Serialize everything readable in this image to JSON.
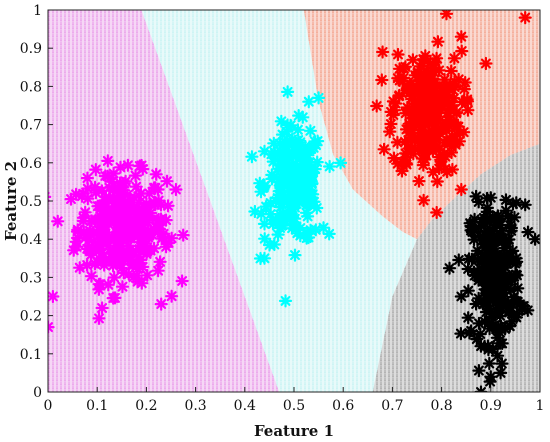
{
  "chart_data": {
    "type": "scatter",
    "title": "",
    "xlabel": "Feature 1",
    "ylabel": "Feature 2",
    "xlim": [
      0,
      1
    ],
    "ylim": [
      0,
      1
    ],
    "xticks": [
      "0",
      "0.1",
      "0.2",
      "0.3",
      "0.4",
      "0.5",
      "0.6",
      "0.7",
      "0.8",
      "0.9",
      "1"
    ],
    "yticks": [
      "0",
      "0.1",
      "0.2",
      "0.3",
      "0.4",
      "0.5",
      "0.6",
      "0.7",
      "0.8",
      "0.9",
      "1"
    ],
    "grid": false,
    "legend": "none",
    "marker": "asterisk",
    "decision_regions": [
      {
        "cluster": "magenta",
        "color": "#e58de5",
        "polygon": [
          [
            0,
            1
          ],
          [
            0.19,
            1
          ],
          [
            0.47,
            0
          ],
          [
            0,
            0
          ]
        ]
      },
      {
        "cluster": "cyan",
        "color": "#bdf1f1",
        "polygon": [
          [
            0.19,
            1
          ],
          [
            0.52,
            1
          ],
          [
            0.55,
            0.76
          ],
          [
            0.58,
            0.62
          ],
          [
            0.62,
            0.53
          ],
          [
            0.68,
            0.46
          ],
          [
            0.72,
            0.42
          ],
          [
            0.75,
            0.4
          ],
          [
            0.7,
            0.25
          ],
          [
            0.66,
            0
          ],
          [
            0.47,
            0
          ]
        ]
      },
      {
        "cluster": "red",
        "color": "#f0937a",
        "polygon": [
          [
            0.52,
            1
          ],
          [
            1,
            1
          ],
          [
            1,
            0.65
          ],
          [
            0.94,
            0.62
          ],
          [
            0.88,
            0.57
          ],
          [
            0.82,
            0.5
          ],
          [
            0.78,
            0.45
          ],
          [
            0.75,
            0.4
          ],
          [
            0.72,
            0.42
          ],
          [
            0.68,
            0.46
          ],
          [
            0.62,
            0.53
          ],
          [
            0.58,
            0.62
          ],
          [
            0.55,
            0.76
          ]
        ]
      },
      {
        "cluster": "black",
        "color": "#9a9a9a",
        "polygon": [
          [
            0.75,
            0.4
          ],
          [
            0.78,
            0.45
          ],
          [
            0.82,
            0.5
          ],
          [
            0.88,
            0.57
          ],
          [
            0.94,
            0.62
          ],
          [
            1,
            0.65
          ],
          [
            1,
            0
          ],
          [
            0.66,
            0
          ],
          [
            0.7,
            0.25
          ]
        ]
      }
    ],
    "series": [
      {
        "color": "#ff00ff",
        "center": [
          0.15,
          0.43
        ],
        "spread": [
          0.045,
          0.07
        ],
        "count": 320,
        "outliers": [
          [
            0.0,
            0.17
          ],
          [
            0.01,
            0.25
          ],
          [
            0.22,
            0.57
          ],
          [
            0.24,
            0.45
          ],
          [
            0.26,
            0.53
          ],
          [
            0.24,
            0.38
          ],
          [
            0.06,
            0.42
          ],
          [
            0.08,
            0.56
          ],
          [
            0.11,
            0.22
          ],
          [
            0.23,
            0.23
          ]
        ]
      },
      {
        "color": "#00ffff",
        "center": [
          0.5,
          0.54
        ],
        "spread": [
          0.03,
          0.075
        ],
        "count": 230,
        "outliers": [
          [
            0.44,
            0.63
          ],
          [
            0.44,
            0.54
          ],
          [
            0.44,
            0.44
          ],
          [
            0.44,
            0.35
          ],
          [
            0.55,
            0.77
          ],
          [
            0.53,
            0.76
          ],
          [
            0.56,
            0.43
          ]
        ]
      },
      {
        "color": "#ff0000",
        "center": [
          0.77,
          0.73
        ],
        "spread": [
          0.035,
          0.08
        ],
        "count": 280,
        "outliers": [
          [
            0.81,
            0.99
          ],
          [
            0.97,
            0.98
          ],
          [
            0.84,
            0.93
          ],
          [
            0.68,
            0.89
          ],
          [
            0.89,
            0.86
          ],
          [
            0.79,
            0.47
          ],
          [
            0.84,
            0.53
          ],
          [
            0.73,
            0.79
          ]
        ]
      },
      {
        "color": "#000000",
        "center": [
          0.91,
          0.31
        ],
        "spread": [
          0.025,
          0.09
        ],
        "count": 280,
        "outliers": [
          [
            0.88,
            0.0
          ],
          [
            0.9,
            0.04
          ],
          [
            0.92,
            0.05
          ],
          [
            0.97,
            0.49
          ],
          [
            0.99,
            0.4
          ],
          [
            0.84,
            0.25
          ],
          [
            0.86,
            0.16
          ],
          [
            0.88,
            0.12
          ]
        ]
      }
    ]
  }
}
